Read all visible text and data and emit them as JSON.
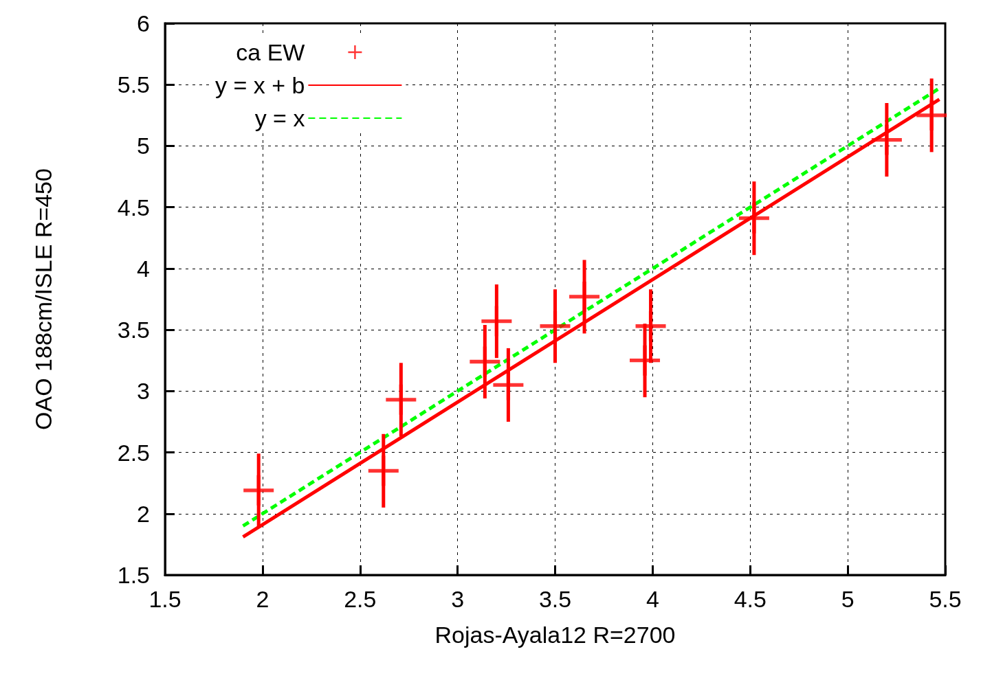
{
  "chart_data": {
    "type": "scatter",
    "xlabel": "Rojas-Ayala12 R=2700",
    "ylabel": "OAO 188cm/ISLE R=450",
    "xlim": [
      1.5,
      5.5
    ],
    "xticks": [
      1.5,
      2,
      2.5,
      3,
      3.5,
      4,
      4.5,
      5,
      5.5
    ],
    "ylim": [
      1.5,
      6
    ],
    "yticks": [
      1.5,
      2,
      2.5,
      3,
      3.5,
      4,
      4.5,
      5,
      5.5,
      6
    ],
    "grid": true,
    "legend": "top left",
    "series": [
      {
        "name": "ca EW",
        "color": "#ff0000",
        "marker": "cross",
        "x": [
          1.98,
          2.62,
          2.71,
          3.14,
          3.2,
          3.26,
          3.5,
          3.65,
          3.96,
          3.99,
          4.52,
          5.2,
          5.43
        ],
        "values": [
          2.19,
          2.35,
          2.93,
          3.24,
          3.57,
          3.05,
          3.53,
          3.77,
          3.25,
          3.53,
          4.41,
          5.05,
          5.25
        ],
        "errors": [
          0.3,
          0.3,
          0.3,
          0.3,
          0.3,
          0.3,
          0.3,
          0.3,
          0.3,
          0.3,
          0.3,
          0.3,
          0.3
        ]
      },
      {
        "name": "y = x + b",
        "color": "#ff0000",
        "type": "line",
        "marker": "none",
        "line_style": "solid",
        "x": [
          1.9,
          5.47
        ],
        "values": [
          1.81,
          5.38
        ]
      },
      {
        "name": "y = x",
        "color": "#00ff00",
        "type": "line",
        "marker": "none",
        "line_style": "dashed",
        "x": [
          1.9,
          5.47
        ],
        "values": [
          1.9,
          5.47
        ]
      }
    ]
  }
}
